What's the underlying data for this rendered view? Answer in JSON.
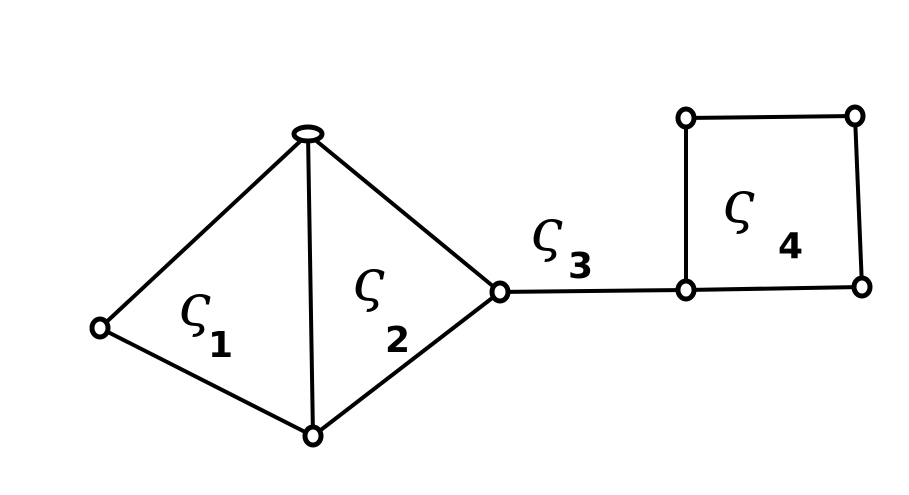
{
  "diagram": {
    "nodes": [
      {
        "id": "v1"
      },
      {
        "id": "v2"
      },
      {
        "id": "v3"
      },
      {
        "id": "v4"
      },
      {
        "id": "v5"
      },
      {
        "id": "v6"
      },
      {
        "id": "v7"
      },
      {
        "id": "v8"
      }
    ],
    "edges": [
      {
        "from": "v1",
        "to": "v2"
      },
      {
        "from": "v1",
        "to": "v3"
      },
      {
        "from": "v2",
        "to": "v3"
      },
      {
        "from": "v2",
        "to": "v4"
      },
      {
        "from": "v3",
        "to": "v4"
      },
      {
        "from": "v4",
        "to": "v5"
      },
      {
        "from": "v5",
        "to": "v6"
      },
      {
        "from": "v6",
        "to": "v7"
      },
      {
        "from": "v7",
        "to": "v8"
      },
      {
        "from": "v8",
        "to": "v5"
      }
    ],
    "labels": [
      {
        "id": "s1",
        "symbol": "ς",
        "subscript": "1"
      },
      {
        "id": "s2",
        "symbol": "ς",
        "subscript": "2"
      },
      {
        "id": "s3",
        "symbol": "ς",
        "subscript": "3"
      },
      {
        "id": "s4",
        "symbol": "ς",
        "subscript": "4"
      }
    ]
  }
}
